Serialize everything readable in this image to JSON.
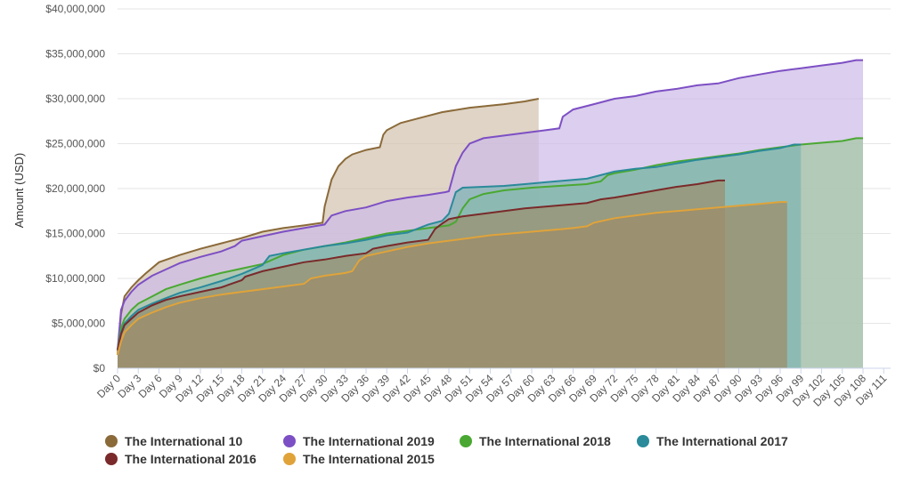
{
  "chart_data": {
    "type": "area",
    "title": "",
    "ylabel": "Amount (USD)",
    "xlabel": "",
    "ylim": [
      0,
      40000000
    ],
    "yticks": [
      "$0",
      "$5,000,000",
      "$10,000,000",
      "$15,000,000",
      "$20,000,000",
      "$25,000,000",
      "$30,000,000",
      "$35,000,000",
      "$40,000,000"
    ],
    "xlim": [
      0,
      112
    ],
    "xtick_labels": [
      "Day 0",
      "Day 3",
      "Day 6",
      "Day 9",
      "Day 12",
      "Day 15",
      "Day 18",
      "Day 21",
      "Day 24",
      "Day 27",
      "Day 30",
      "Day 33",
      "Day 36",
      "Day 39",
      "Day 42",
      "Day 45",
      "Day 48",
      "Day 51",
      "Day 54",
      "Day 57",
      "Day 60",
      "Day 63",
      "Day 66",
      "Day 69",
      "Day 72",
      "Day 75",
      "Day 78",
      "Day 81",
      "Day 84",
      "Day 87",
      "Day 90",
      "Day 93",
      "Day 96",
      "Day 99",
      "Day 102",
      "Day 105",
      "Day 108",
      "Day 111"
    ],
    "grid": true,
    "legend_position": "bottom",
    "series": [
      {
        "name": "The International 10",
        "color": "#8b6a3a",
        "fill": "#d3c4ae",
        "points": [
          [
            0,
            1.5
          ],
          [
            0.5,
            6
          ],
          [
            1,
            8
          ],
          [
            2,
            9
          ],
          [
            3,
            9.8
          ],
          [
            4,
            10.5
          ],
          [
            6,
            11.8
          ],
          [
            9,
            12.6
          ],
          [
            12,
            13.3
          ],
          [
            15,
            13.9
          ],
          [
            18,
            14.5
          ],
          [
            21,
            15.2
          ],
          [
            24,
            15.6
          ],
          [
            27,
            15.9
          ],
          [
            29.7,
            16.2
          ],
          [
            30,
            18
          ],
          [
            31,
            21
          ],
          [
            32,
            22.5
          ],
          [
            33,
            23.3
          ],
          [
            34,
            23.8
          ],
          [
            36,
            24.3
          ],
          [
            38,
            24.6
          ],
          [
            38.5,
            26
          ],
          [
            39,
            26.5
          ],
          [
            41,
            27.3
          ],
          [
            44,
            27.9
          ],
          [
            47,
            28.5
          ],
          [
            51,
            29
          ],
          [
            56,
            29.4
          ],
          [
            59,
            29.7
          ],
          [
            61,
            30
          ]
        ]
      },
      {
        "name": "The International 2019",
        "color": "#7d4fc4",
        "fill": "#cdbbe8",
        "points": [
          [
            0,
            2
          ],
          [
            0.5,
            6.5
          ],
          [
            1,
            7.5
          ],
          [
            2,
            8.5
          ],
          [
            3,
            9.3
          ],
          [
            5,
            10.3
          ],
          [
            7,
            11
          ],
          [
            9,
            11.7
          ],
          [
            12,
            12.4
          ],
          [
            15,
            13
          ],
          [
            16,
            13.3
          ],
          [
            17,
            13.6
          ],
          [
            18,
            14.2
          ],
          [
            21,
            14.7
          ],
          [
            24,
            15.2
          ],
          [
            27,
            15.6
          ],
          [
            30,
            16
          ],
          [
            31,
            17
          ],
          [
            33,
            17.5
          ],
          [
            36,
            17.9
          ],
          [
            39,
            18.6
          ],
          [
            42,
            19
          ],
          [
            45,
            19.3
          ],
          [
            47.5,
            19.6
          ],
          [
            48,
            19.7
          ],
          [
            49,
            22.5
          ],
          [
            50,
            24
          ],
          [
            51,
            25
          ],
          [
            53,
            25.6
          ],
          [
            56,
            25.9
          ],
          [
            59,
            26.2
          ],
          [
            62,
            26.5
          ],
          [
            64,
            26.7
          ],
          [
            64.5,
            28
          ],
          [
            66,
            28.8
          ],
          [
            69,
            29.4
          ],
          [
            72,
            30
          ],
          [
            75,
            30.3
          ],
          [
            78,
            30.8
          ],
          [
            81,
            31.1
          ],
          [
            84,
            31.5
          ],
          [
            87,
            31.7
          ],
          [
            90,
            32.3
          ],
          [
            93,
            32.7
          ],
          [
            96,
            33.1
          ],
          [
            99,
            33.4
          ],
          [
            102,
            33.7
          ],
          [
            105,
            34
          ],
          [
            107,
            34.3
          ],
          [
            108,
            34.3
          ]
        ]
      },
      {
        "name": "The International 2018",
        "color": "#4aa832",
        "fill": "#a3c9a3",
        "points": [
          [
            0,
            2
          ],
          [
            0.5,
            4.5
          ],
          [
            1,
            5.5
          ],
          [
            2,
            6.5
          ],
          [
            3,
            7.2
          ],
          [
            5,
            8
          ],
          [
            7,
            8.8
          ],
          [
            9,
            9.3
          ],
          [
            12,
            10
          ],
          [
            15,
            10.6
          ],
          [
            18,
            11.1
          ],
          [
            21,
            11.6
          ],
          [
            24,
            12.6
          ],
          [
            27,
            13.2
          ],
          [
            30,
            13.6
          ],
          [
            33,
            14
          ],
          [
            36,
            14.5
          ],
          [
            39,
            15
          ],
          [
            42,
            15.3
          ],
          [
            45,
            15.6
          ],
          [
            48,
            15.9
          ],
          [
            49,
            16.3
          ],
          [
            50,
            17.8
          ],
          [
            51,
            18.8
          ],
          [
            53,
            19.4
          ],
          [
            56,
            19.8
          ],
          [
            60,
            20.1
          ],
          [
            64,
            20.3
          ],
          [
            68,
            20.5
          ],
          [
            70,
            20.8
          ],
          [
            71,
            21.5
          ],
          [
            72,
            21.7
          ],
          [
            75,
            22.1
          ],
          [
            78,
            22.6
          ],
          [
            81,
            23
          ],
          [
            84,
            23.3
          ],
          [
            87,
            23.6
          ],
          [
            90,
            23.9
          ],
          [
            93,
            24.3
          ],
          [
            96,
            24.6
          ],
          [
            99,
            24.9
          ],
          [
            102,
            25.1
          ],
          [
            105,
            25.3
          ],
          [
            107,
            25.6
          ],
          [
            108,
            25.6
          ]
        ]
      },
      {
        "name": "The International 2017",
        "color": "#2a8a9a",
        "fill": "#7eb5b2",
        "points": [
          [
            0,
            2
          ],
          [
            0.5,
            4
          ],
          [
            1,
            5
          ],
          [
            2,
            5.8
          ],
          [
            3,
            6.5
          ],
          [
            5,
            7.2
          ],
          [
            7,
            7.8
          ],
          [
            9,
            8.4
          ],
          [
            12,
            9
          ],
          [
            15,
            9.7
          ],
          [
            18,
            10.5
          ],
          [
            21,
            11.5
          ],
          [
            22,
            12.5
          ],
          [
            24,
            12.8
          ],
          [
            27,
            13.2
          ],
          [
            30,
            13.6
          ],
          [
            33,
            13.9
          ],
          [
            36,
            14.3
          ],
          [
            39,
            14.8
          ],
          [
            42,
            15.1
          ],
          [
            45,
            16
          ],
          [
            47,
            16.4
          ],
          [
            48,
            17.2
          ],
          [
            49,
            19.6
          ],
          [
            50,
            20.1
          ],
          [
            53,
            20.2
          ],
          [
            56,
            20.3
          ],
          [
            59,
            20.5
          ],
          [
            62,
            20.7
          ],
          [
            65,
            20.9
          ],
          [
            68,
            21.1
          ],
          [
            70,
            21.5
          ],
          [
            72,
            21.9
          ],
          [
            75,
            22.2
          ],
          [
            78,
            22.4
          ],
          [
            81,
            22.8
          ],
          [
            84,
            23.2
          ],
          [
            87,
            23.5
          ],
          [
            90,
            23.8
          ],
          [
            93,
            24.2
          ],
          [
            96,
            24.5
          ],
          [
            98,
            24.9
          ],
          [
            99,
            24.9
          ]
        ]
      },
      {
        "name": "The International 2016",
        "color": "#7a2a2a",
        "fill": "#9a8f6e",
        "points": [
          [
            0,
            2
          ],
          [
            0.5,
            3.8
          ],
          [
            1,
            4.8
          ],
          [
            2,
            5.5
          ],
          [
            3,
            6.2
          ],
          [
            5,
            7
          ],
          [
            7,
            7.6
          ],
          [
            9,
            8
          ],
          [
            12,
            8.5
          ],
          [
            15,
            9
          ],
          [
            18,
            9.8
          ],
          [
            18.5,
            10.2
          ],
          [
            21,
            10.8
          ],
          [
            24,
            11.3
          ],
          [
            27,
            11.8
          ],
          [
            30,
            12.1
          ],
          [
            33,
            12.5
          ],
          [
            36,
            12.8
          ],
          [
            37,
            13.3
          ],
          [
            39,
            13.6
          ],
          [
            42,
            14
          ],
          [
            45,
            14.3
          ],
          [
            46,
            15.5
          ],
          [
            47,
            16.1
          ],
          [
            48,
            16.6
          ],
          [
            50,
            16.9
          ],
          [
            53,
            17.2
          ],
          [
            56,
            17.5
          ],
          [
            59,
            17.8
          ],
          [
            62,
            18
          ],
          [
            65,
            18.2
          ],
          [
            68,
            18.4
          ],
          [
            70,
            18.8
          ],
          [
            72,
            19
          ],
          [
            75,
            19.4
          ],
          [
            78,
            19.8
          ],
          [
            81,
            20.2
          ],
          [
            84,
            20.5
          ],
          [
            87,
            20.9
          ],
          [
            88,
            20.9
          ]
        ]
      },
      {
        "name": "The International 2015",
        "color": "#e0a33a",
        "fill": "#9d8c68",
        "points": [
          [
            0,
            1.5
          ],
          [
            0.5,
            3
          ],
          [
            1,
            4
          ],
          [
            2,
            4.8
          ],
          [
            3,
            5.5
          ],
          [
            5,
            6.2
          ],
          [
            7,
            6.8
          ],
          [
            9,
            7.3
          ],
          [
            12,
            7.8
          ],
          [
            15,
            8.2
          ],
          [
            18,
            8.5
          ],
          [
            21,
            8.8
          ],
          [
            24,
            9.1
          ],
          [
            27,
            9.4
          ],
          [
            28,
            10
          ],
          [
            30,
            10.3
          ],
          [
            33,
            10.6
          ],
          [
            34,
            10.8
          ],
          [
            35,
            12
          ],
          [
            36,
            12.5
          ],
          [
            39,
            13
          ],
          [
            42,
            13.5
          ],
          [
            45,
            13.9
          ],
          [
            48,
            14.2
          ],
          [
            51,
            14.5
          ],
          [
            54,
            14.8
          ],
          [
            57,
            15
          ],
          [
            60,
            15.2
          ],
          [
            63,
            15.4
          ],
          [
            66,
            15.6
          ],
          [
            68,
            15.8
          ],
          [
            69,
            16.2
          ],
          [
            72,
            16.7
          ],
          [
            75,
            17
          ],
          [
            78,
            17.3
          ],
          [
            81,
            17.5
          ],
          [
            84,
            17.7
          ],
          [
            87,
            17.9
          ],
          [
            90,
            18.1
          ],
          [
            93,
            18.3
          ],
          [
            96,
            18.5
          ],
          [
            97,
            18.5
          ]
        ]
      }
    ]
  }
}
